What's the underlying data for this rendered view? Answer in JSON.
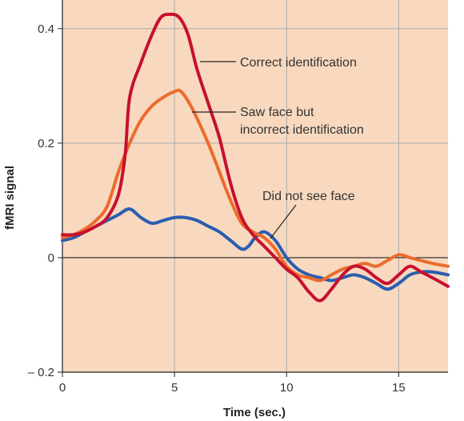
{
  "chart_data": {
    "type": "line",
    "xlabel": "Time (sec.)",
    "ylabel": "fMRI signal",
    "xlim": [
      0,
      17.2
    ],
    "ylim": [
      -0.2,
      0.45
    ],
    "xticks": [
      0,
      5,
      10,
      15
    ],
    "xtick_labels": [
      "0",
      "5",
      "10",
      "15"
    ],
    "yticks": [
      -0.2,
      0,
      0.2,
      0.4
    ],
    "ytick_labels": [
      "– 0.2",
      "0",
      "0.2",
      "0.4"
    ],
    "grid": true,
    "colors": {
      "background": "#f8d9bf",
      "grid": "#aaaaaa",
      "axis": "#222222"
    },
    "series": [
      {
        "name": "Correct identification",
        "color": "#c8102e",
        "x": [
          0,
          0.5,
          1,
          1.5,
          2,
          2.5,
          2.8,
          3,
          3.5,
          4,
          4.4,
          4.8,
          5.2,
          5.6,
          6,
          6.5,
          7,
          7.5,
          8,
          8.5,
          9,
          9.5,
          10,
          10.5,
          11,
          11.5,
          12,
          12.5,
          13,
          13.5,
          14,
          14.5,
          15,
          15.5,
          16,
          16.5,
          17.2
        ],
        "y": [
          0.04,
          0.04,
          0.045,
          0.055,
          0.07,
          0.11,
          0.18,
          0.28,
          0.34,
          0.39,
          0.42,
          0.425,
          0.42,
          0.39,
          0.33,
          0.27,
          0.21,
          0.13,
          0.07,
          0.04,
          0.02,
          0.0,
          -0.02,
          -0.035,
          -0.06,
          -0.075,
          -0.055,
          -0.03,
          -0.015,
          -0.02,
          -0.035,
          -0.045,
          -0.03,
          -0.015,
          -0.025,
          -0.035,
          -0.05
        ]
      },
      {
        "name": "Saw face but incorrect identification",
        "color": "#ec6b2d",
        "x": [
          0,
          0.5,
          1,
          1.5,
          2,
          2.5,
          3,
          3.5,
          4,
          4.5,
          5,
          5.3,
          5.8,
          6.5,
          7,
          7.5,
          8,
          8.5,
          9,
          9.5,
          10,
          10.5,
          11,
          11.5,
          12,
          12.5,
          13,
          13.5,
          14,
          14.5,
          15,
          15.5,
          16,
          16.5,
          17.2
        ],
        "y": [
          0.035,
          0.04,
          0.05,
          0.065,
          0.09,
          0.15,
          0.2,
          0.24,
          0.265,
          0.28,
          0.29,
          0.29,
          0.26,
          0.2,
          0.15,
          0.1,
          0.06,
          0.045,
          0.035,
          0.015,
          -0.015,
          -0.03,
          -0.035,
          -0.04,
          -0.03,
          -0.02,
          -0.015,
          -0.01,
          -0.015,
          -0.005,
          0.005,
          0.0,
          -0.005,
          -0.01,
          -0.015
        ]
      },
      {
        "name": "Did not see face",
        "color": "#2a5db0",
        "x": [
          0,
          0.5,
          1,
          1.5,
          2,
          2.5,
          3,
          3.5,
          4,
          4.5,
          5,
          5.5,
          6,
          6.5,
          7,
          7.5,
          8,
          8.3,
          8.6,
          9,
          9.5,
          10,
          10.5,
          11,
          11.5,
          12,
          12.5,
          13,
          13.5,
          14,
          14.5,
          15,
          15.5,
          16,
          16.5,
          17.2
        ],
        "y": [
          0.03,
          0.035,
          0.045,
          0.055,
          0.065,
          0.075,
          0.085,
          0.07,
          0.06,
          0.065,
          0.07,
          0.07,
          0.065,
          0.055,
          0.045,
          0.03,
          0.015,
          0.02,
          0.035,
          0.045,
          0.03,
          0.0,
          -0.02,
          -0.03,
          -0.035,
          -0.04,
          -0.035,
          -0.03,
          -0.035,
          -0.045,
          -0.055,
          -0.045,
          -0.03,
          -0.025,
          -0.025,
          -0.03
        ]
      }
    ],
    "annotations": [
      {
        "text": "Correct identification",
        "series": 0
      },
      {
        "text": "Saw face but",
        "series": 1
      },
      {
        "text": "incorrect identification",
        "series": 1
      },
      {
        "text": "Did not see face",
        "series": 2
      }
    ]
  }
}
